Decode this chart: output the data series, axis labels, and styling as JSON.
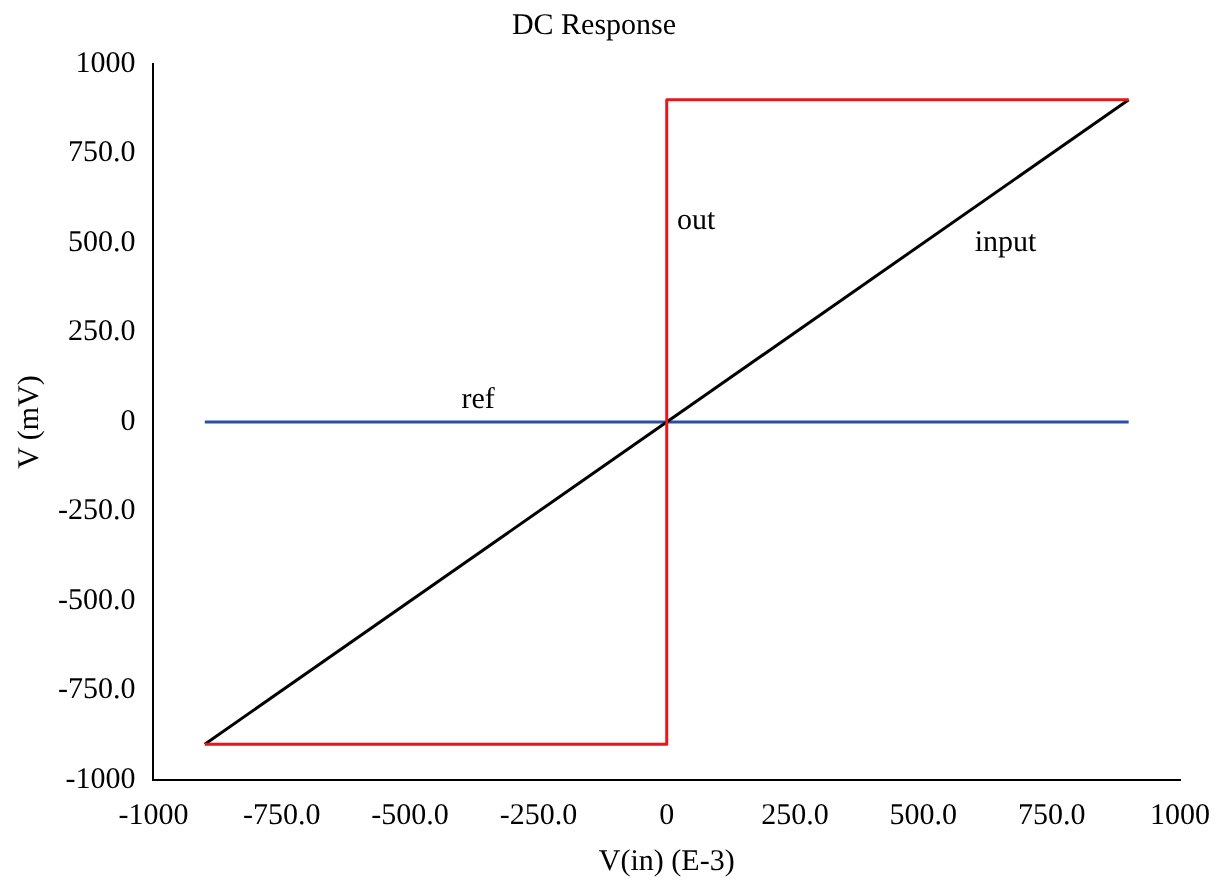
{
  "chart_data": {
    "type": "line",
    "title": "DC Response",
    "xlabel": "V(in) (E-3)",
    "ylabel": "V (mV)",
    "xlim": [
      -1000,
      1000
    ],
    "xticks": [
      -1000,
      {
        "value": -750,
        "label": "-750.0"
      },
      {
        "value": -500,
        "label": "-500.0"
      },
      {
        "value": -250,
        "label": "-250.0"
      },
      0,
      {
        "value": 250,
        "label": "250.0"
      },
      {
        "value": 500,
        "label": "500.0"
      },
      {
        "value": 750,
        "label": "750.0"
      },
      1000
    ],
    "ylim": [
      -1000,
      1000
    ],
    "yticks": [
      -1000,
      {
        "value": -750,
        "label": "-750.0"
      },
      {
        "value": -500,
        "label": "-500.0"
      },
      {
        "value": -250,
        "label": "-250.0"
      },
      0,
      {
        "value": 250,
        "label": "250.0"
      },
      {
        "value": 500,
        "label": "500.0"
      },
      {
        "value": 750,
        "label": "750.0"
      },
      1000
    ],
    "grid": false,
    "legend": false,
    "marker": "none",
    "line_style": "solid",
    "series": [
      {
        "name": "out",
        "color": "#e8151b",
        "x": [
          -900,
          0,
          0,
          900
        ],
        "values": [
          -900,
          -900,
          900,
          900
        ]
      },
      {
        "name": "input",
        "color": "#000000",
        "x": [
          -900,
          900
        ],
        "values": [
          -900,
          900
        ]
      },
      {
        "name": "ref",
        "color": "#2b4ea8",
        "x": [
          -900,
          900
        ],
        "values": [
          0,
          0
        ]
      }
    ]
  }
}
